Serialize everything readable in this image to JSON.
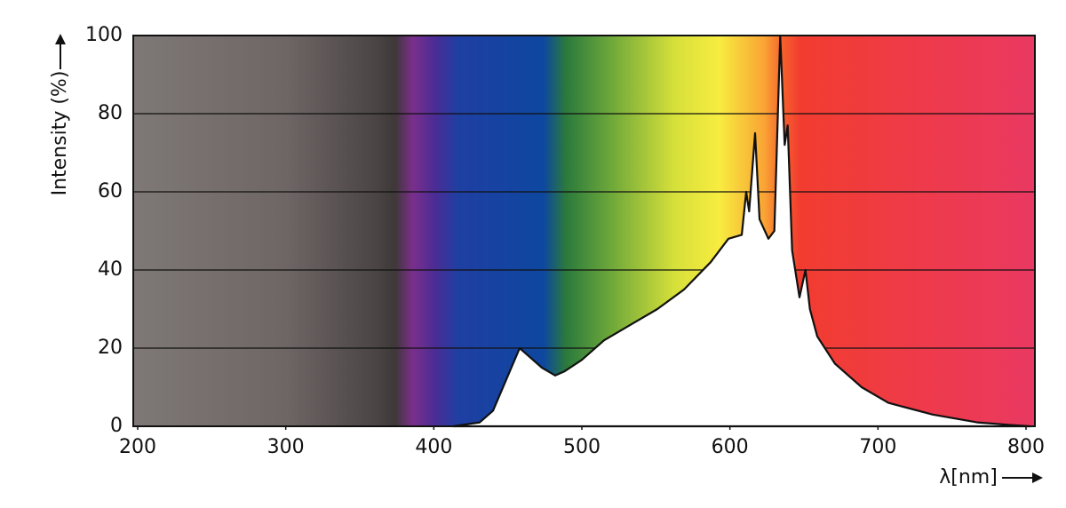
{
  "chart_data": {
    "type": "area",
    "y_label": "Intensity (%)",
    "x_label": "λ[nm]",
    "x": [
      413,
      431,
      440,
      449,
      458,
      464,
      473,
      482,
      488,
      500,
      515,
      533,
      551,
      569,
      587,
      599,
      608,
      611,
      613,
      617,
      620,
      626,
      630,
      634,
      637,
      639,
      642,
      647,
      651,
      654,
      659,
      671,
      689,
      707,
      737,
      767,
      791,
      803
    ],
    "values": [
      0,
      1,
      4,
      12,
      20,
      18,
      15,
      13,
      14,
      17,
      22,
      26,
      30,
      35,
      42,
      48,
      49,
      60,
      55,
      75,
      53,
      48,
      50,
      100,
      72,
      77,
      45,
      33,
      40,
      30,
      23,
      16,
      10,
      6,
      3,
      1,
      0.3,
      0
    ],
    "color": "#ffffff",
    "xlim": [
      197,
      806
    ],
    "ylim": [
      0,
      100
    ],
    "xticks": [
      200,
      300,
      400,
      500,
      600,
      700,
      800
    ],
    "yticks": [
      0,
      20,
      40,
      60,
      80,
      100
    ],
    "grid": true
  }
}
